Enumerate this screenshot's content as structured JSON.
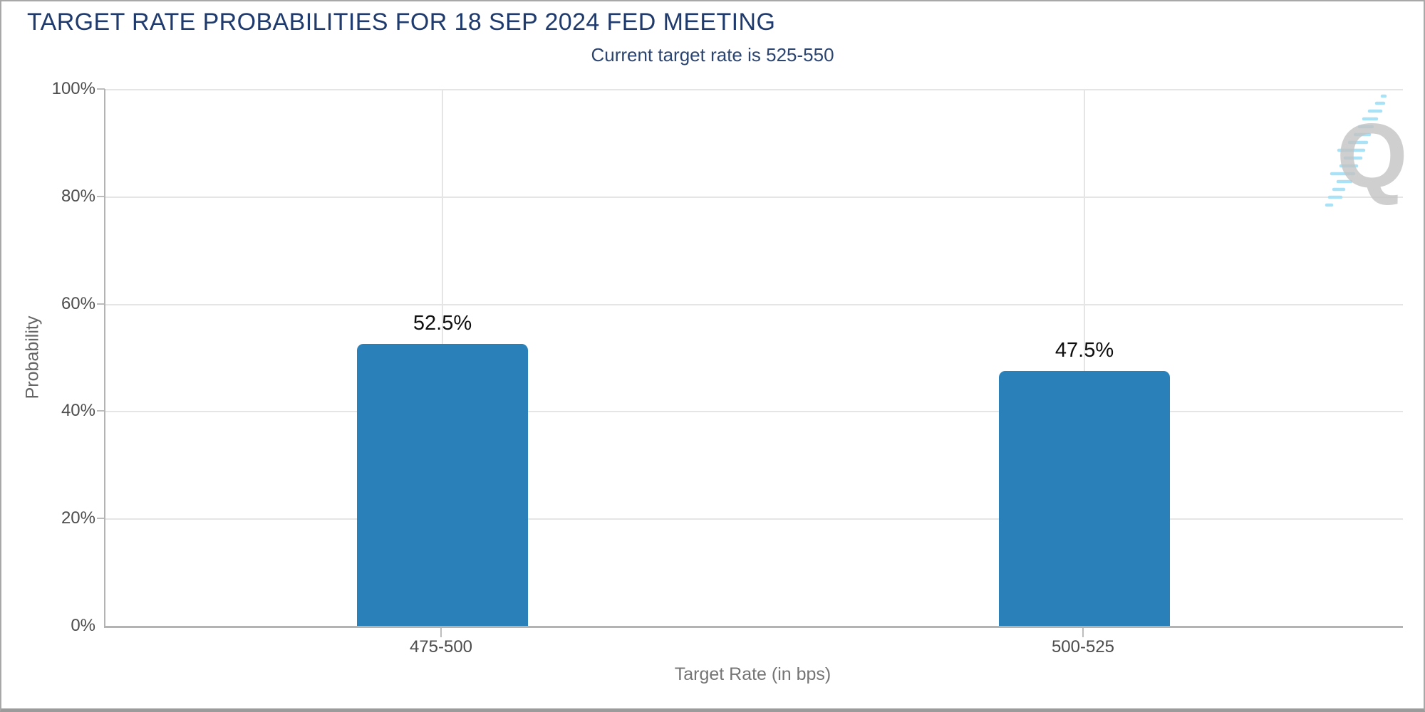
{
  "chart_data": {
    "type": "bar",
    "title": "TARGET RATE PROBABILITIES FOR 18 SEP 2024 FED MEETING",
    "subtitle": "Current target rate is 525-550",
    "categories": [
      "475-500",
      "500-525"
    ],
    "values": [
      52.5,
      47.5
    ],
    "value_labels": [
      "52.5%",
      "47.5%"
    ],
    "xlabel": "Target Rate (in bps)",
    "ylabel": "Probability",
    "ylim": [
      0,
      100
    ],
    "ytick_labels_top_to_bottom": [
      "100%",
      "80%",
      "60%",
      "40%",
      "20%",
      "0%"
    ],
    "grid": true,
    "legend_position": "none",
    "bar_color": "#2a80b9"
  },
  "watermark": {
    "icon": "quikstrike-q-logo",
    "letter": "Q"
  },
  "colors": {
    "title_navy": "#1f3a6d",
    "subtitle_navy": "#2b4570",
    "bar_blue": "#2a80b9",
    "axis_line_gray": "#b3b3b3",
    "grid_gray": "#e5e5e5",
    "tick_text_gray": "#4d4d4d",
    "axis_title_gray": "#757575",
    "value_label_black": "#0f0f0f",
    "watermark_gray": "#c4c4c4",
    "watermark_blue": "#a9e2f6"
  }
}
